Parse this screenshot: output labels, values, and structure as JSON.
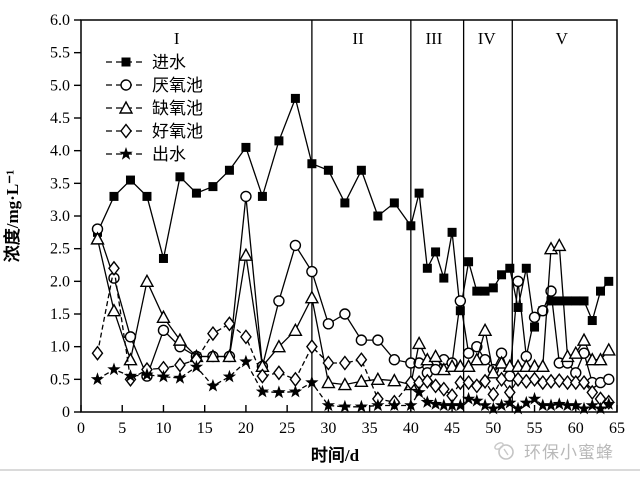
{
  "watermark": {
    "text": "环保小蜜蜂",
    "icon": "bee-icon",
    "color": "#b9b9b9"
  },
  "chart_data": {
    "type": "line",
    "title": "",
    "xlabel": "时间/d",
    "ylabel": "浓度/mg·L⁻¹",
    "xlim": [
      0,
      65
    ],
    "ylim": [
      0,
      6.0
    ],
    "x_ticks": [
      0,
      5,
      10,
      15,
      20,
      25,
      30,
      35,
      40,
      45,
      50,
      55,
      60,
      65
    ],
    "y_ticks": [
      0,
      0.5,
      1.0,
      1.5,
      2.0,
      2.5,
      3.0,
      3.5,
      4.0,
      4.5,
      5.0,
      5.5,
      6.0
    ],
    "grid": false,
    "legend_position": "upper-left-inside",
    "line_color": "#000000",
    "phase_dividers_x": [
      28,
      40,
      46.4,
      52.3
    ],
    "phase_labels": [
      {
        "text": "I",
        "x": 11.6
      },
      {
        "text": "II",
        "x": 33.6
      },
      {
        "text": "III",
        "x": 42.8
      },
      {
        "text": "IV",
        "x": 49.2
      },
      {
        "text": "V",
        "x": 58.3
      }
    ],
    "x": [
      2,
      4,
      6,
      8,
      10,
      12,
      14,
      16,
      18,
      20,
      22,
      24,
      26,
      28,
      30,
      32,
      34,
      36,
      38,
      40,
      41,
      42,
      43,
      44,
      45,
      46,
      47,
      48,
      49,
      50,
      51,
      52,
      53,
      54,
      55,
      56,
      57,
      58,
      59,
      60,
      61,
      62,
      63,
      64
    ],
    "series": [
      {
        "name": "进水",
        "key": "influent",
        "marker": "square",
        "fill": "filled",
        "line": "solid",
        "y": [
          2.75,
          3.3,
          3.55,
          3.3,
          2.35,
          3.6,
          3.35,
          3.45,
          3.7,
          4.05,
          3.3,
          4.15,
          4.8,
          3.8,
          3.7,
          3.2,
          3.7,
          3.0,
          3.2,
          2.85,
          3.35,
          2.2,
          2.45,
          2.05,
          2.75,
          1.55,
          2.3,
          1.85,
          1.85,
          1.9,
          2.1,
          2.2,
          1.6,
          2.2,
          1.3,
          1.55,
          1.7,
          1.7,
          1.7,
          1.7,
          1.7,
          1.4,
          1.85,
          2.0
        ]
      },
      {
        "name": "厌氧池",
        "key": "anaerobic-tank",
        "marker": "circle",
        "fill": "open",
        "line": "solid",
        "y": [
          2.8,
          2.05,
          1.15,
          0.55,
          1.25,
          1.0,
          0.85,
          0.85,
          0.85,
          3.3,
          0.7,
          1.7,
          2.55,
          2.15,
          1.35,
          1.5,
          1.1,
          1.1,
          0.8,
          0.75,
          0.75,
          0.6,
          0.65,
          0.8,
          0.75,
          1.7,
          0.9,
          1.0,
          0.8,
          0.65,
          0.9,
          0.55,
          2.0,
          0.85,
          1.45,
          1.55,
          1.85,
          0.75,
          0.75,
          0.6,
          0.9,
          0.45,
          0.45,
          0.5
        ]
      },
      {
        "name": "缺氧池",
        "key": "anoxic-tank",
        "marker": "triangle",
        "fill": "open",
        "line": "solid",
        "y": [
          2.65,
          1.55,
          0.8,
          2.0,
          1.45,
          1.1,
          0.85,
          0.85,
          0.85,
          2.4,
          0.7,
          1.0,
          1.25,
          1.75,
          0.45,
          0.42,
          0.47,
          0.5,
          0.48,
          0.42,
          1.05,
          0.8,
          0.85,
          0.65,
          0.7,
          0.7,
          0.7,
          0.8,
          1.25,
          0.6,
          0.75,
          0.7,
          0.7,
          0.7,
          0.7,
          0.7,
          2.5,
          2.55,
          0.85,
          0.9,
          1.1,
          0.8,
          0.8,
          0.95
        ]
      },
      {
        "name": "好氧池",
        "key": "aerobic-tank",
        "marker": "diamond",
        "fill": "open",
        "line": "dashed",
        "y": [
          0.9,
          2.2,
          0.5,
          0.65,
          0.67,
          0.72,
          0.8,
          1.2,
          1.35,
          1.15,
          0.55,
          0.6,
          0.5,
          1.0,
          0.75,
          0.75,
          0.8,
          0.2,
          0.15,
          0.45,
          0.45,
          0.47,
          0.4,
          0.35,
          0.25,
          0.45,
          0.45,
          0.4,
          0.47,
          0.27,
          0.5,
          0.3,
          0.5,
          0.47,
          0.5,
          0.45,
          0.47,
          0.48,
          0.45,
          0.45,
          0.45,
          0.3,
          0.2,
          0.15
        ]
      },
      {
        "name": "出水",
        "key": "effluent",
        "marker": "star",
        "fill": "filled",
        "line": "dashed",
        "y": [
          0.5,
          0.65,
          0.55,
          0.57,
          0.54,
          0.52,
          0.69,
          0.4,
          0.54,
          0.77,
          0.31,
          0.3,
          0.31,
          0.45,
          0.1,
          0.08,
          0.08,
          0.1,
          0.1,
          0.1,
          0.3,
          0.15,
          0.12,
          0.1,
          0.1,
          0.1,
          0.2,
          0.17,
          0.1,
          0.05,
          0.1,
          0.14,
          0.05,
          0.14,
          0.2,
          0.1,
          0.1,
          0.12,
          0.1,
          0.1,
          0.05,
          0.1,
          0.05,
          0.12
        ]
      }
    ]
  }
}
